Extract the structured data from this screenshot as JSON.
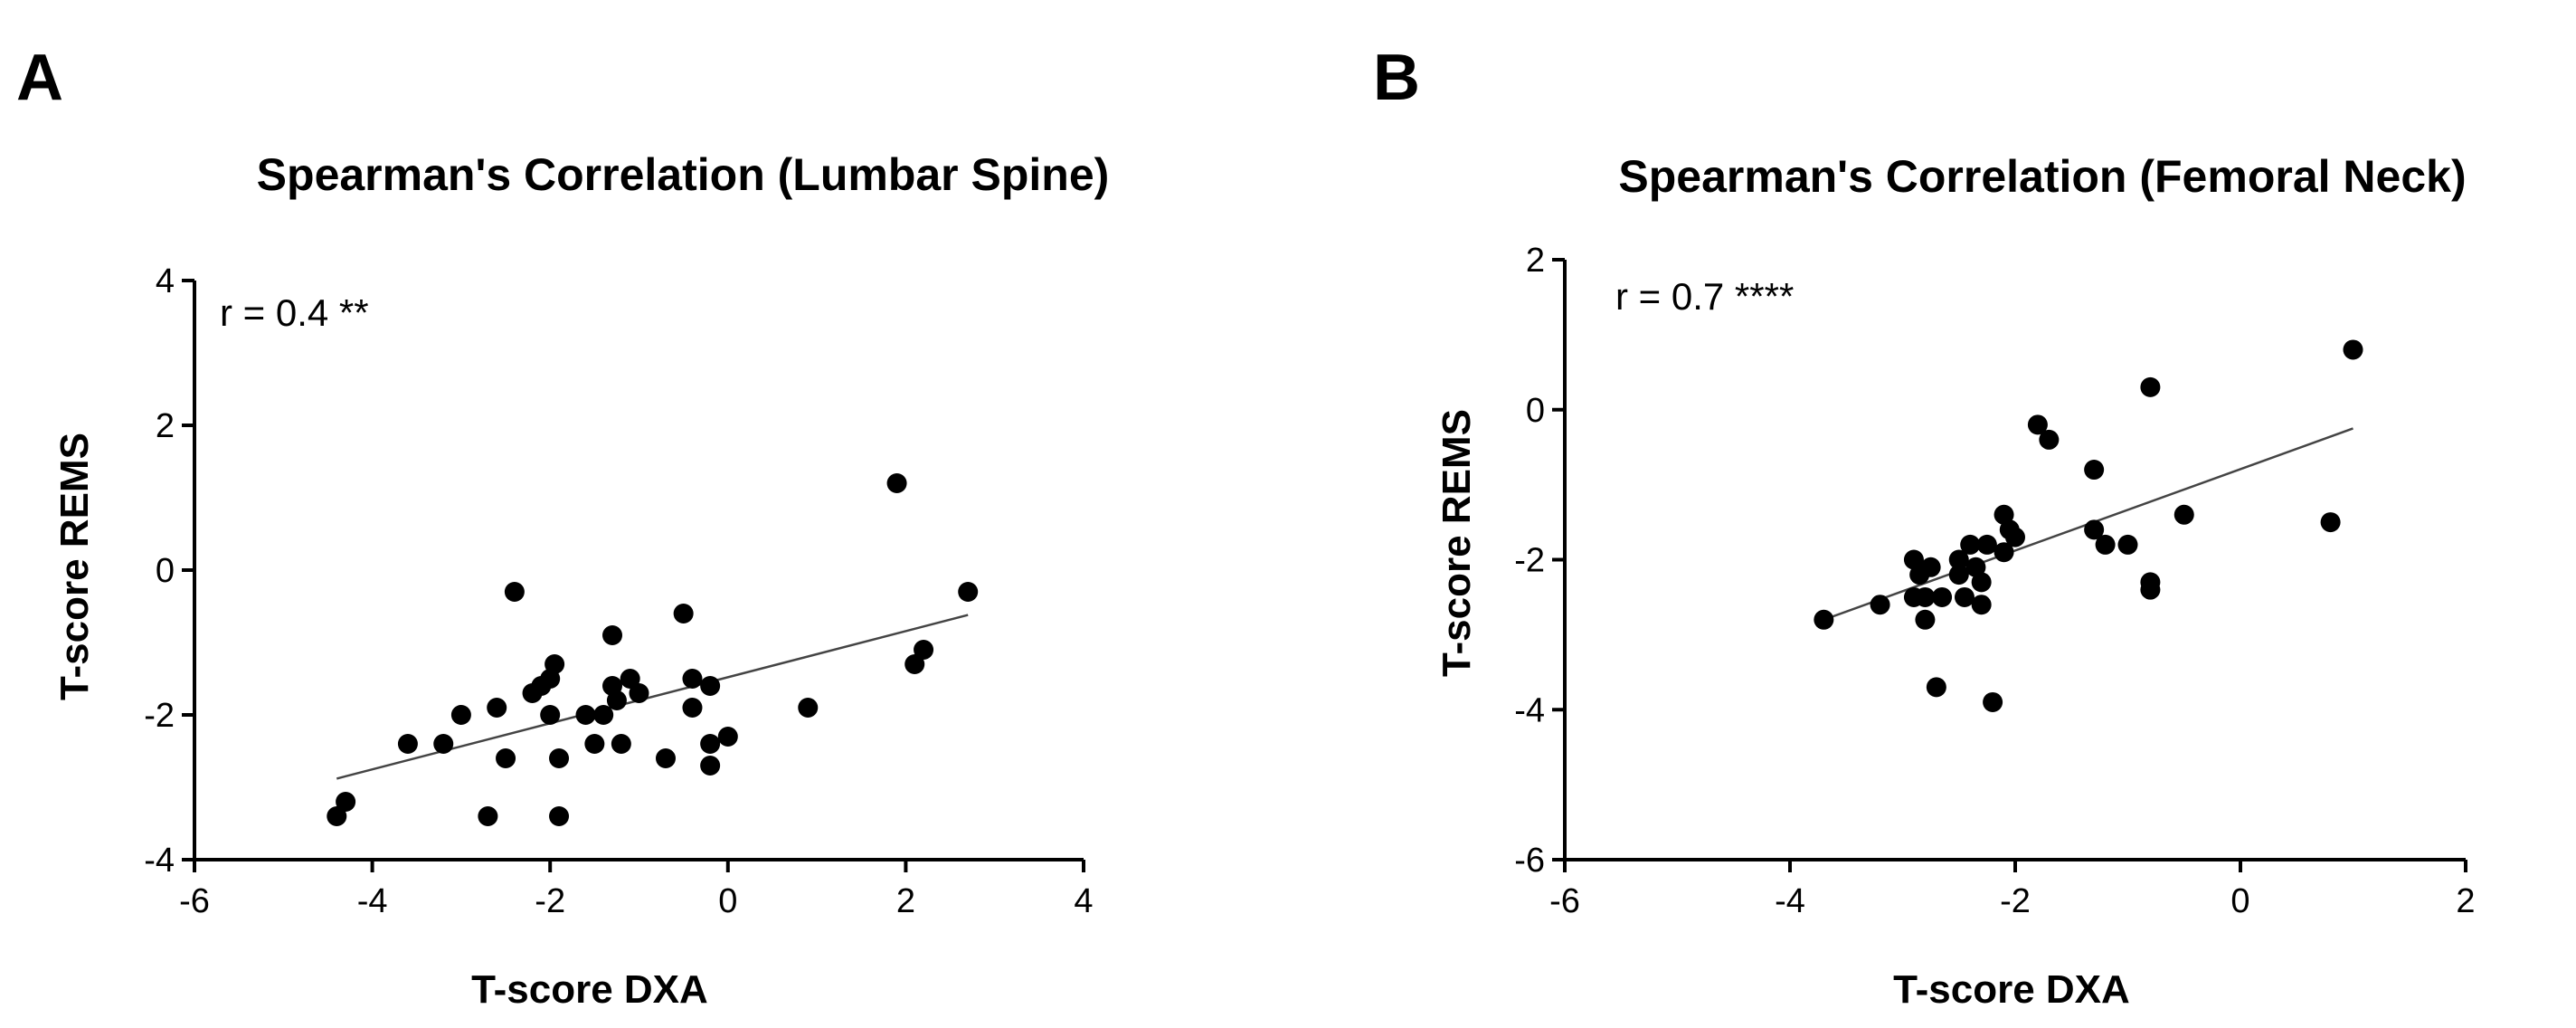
{
  "chart_data": [
    {
      "type": "scatter",
      "panel_label": "A",
      "title": "Spearman's Correlation (Lumbar Spine)",
      "xlabel": "T-score DXA",
      "ylabel": "T-score REMS",
      "xlim": [
        -6,
        4
      ],
      "ylim": [
        -4,
        4
      ],
      "xticks": [
        -6,
        -4,
        -2,
        0,
        2,
        4
      ],
      "yticks": [
        -4,
        -2,
        0,
        2,
        4
      ],
      "xtick_labels": [
        "-6",
        "-4",
        "-2",
        "0",
        "2",
        "4"
      ],
      "ytick_labels": [
        "-4",
        "-2",
        "0",
        "2",
        "4"
      ],
      "annotation": "r = 0.4 **",
      "grid": false,
      "points": [
        {
          "x": -4.4,
          "y": -3.4
        },
        {
          "x": -4.3,
          "y": -3.2
        },
        {
          "x": -3.6,
          "y": -2.4
        },
        {
          "x": -3.2,
          "y": -2.4
        },
        {
          "x": -3.0,
          "y": -2.0
        },
        {
          "x": -2.7,
          "y": -3.4
        },
        {
          "x": -2.6,
          "y": -1.9
        },
        {
          "x": -2.5,
          "y": -2.6
        },
        {
          "x": -2.4,
          "y": -0.3
        },
        {
          "x": -2.2,
          "y": -1.7
        },
        {
          "x": -2.1,
          "y": -1.6
        },
        {
          "x": -2.0,
          "y": -1.5
        },
        {
          "x": -2.0,
          "y": -2.0
        },
        {
          "x": -1.95,
          "y": -1.3
        },
        {
          "x": -1.9,
          "y": -2.6
        },
        {
          "x": -1.9,
          "y": -3.4
        },
        {
          "x": -1.6,
          "y": -2.0
        },
        {
          "x": -1.5,
          "y": -2.4
        },
        {
          "x": -1.4,
          "y": -2.0
        },
        {
          "x": -1.3,
          "y": -0.9
        },
        {
          "x": -1.3,
          "y": -1.6
        },
        {
          "x": -1.25,
          "y": -1.8
        },
        {
          "x": -1.2,
          "y": -2.4
        },
        {
          "x": -1.1,
          "y": -1.5
        },
        {
          "x": -1.0,
          "y": -1.7
        },
        {
          "x": -0.7,
          "y": -2.6
        },
        {
          "x": -0.5,
          "y": -0.6
        },
        {
          "x": -0.4,
          "y": -1.5
        },
        {
          "x": -0.4,
          "y": -1.9
        },
        {
          "x": -0.2,
          "y": -1.6
        },
        {
          "x": -0.2,
          "y": -2.4
        },
        {
          "x": -0.2,
          "y": -2.7
        },
        {
          "x": 0.0,
          "y": -2.3
        },
        {
          "x": 0.9,
          "y": -1.9
        },
        {
          "x": 1.9,
          "y": 1.2
        },
        {
          "x": 2.1,
          "y": -1.3
        },
        {
          "x": 2.2,
          "y": -1.1
        },
        {
          "x": 2.7,
          "y": -0.3
        }
      ],
      "fit_line": {
        "x": [
          -4.4,
          2.7
        ],
        "y": [
          -2.88,
          -0.62
        ]
      }
    },
    {
      "type": "scatter",
      "panel_label": "B",
      "title": "Spearman's Correlation (Femoral Neck)",
      "xlabel": "T-score DXA",
      "ylabel": "T-score REMS",
      "xlim": [
        -6,
        2
      ],
      "ylim": [
        -6,
        2
      ],
      "xticks": [
        -6,
        -4,
        -2,
        0,
        2
      ],
      "yticks": [
        -6,
        -4,
        -2,
        0,
        2
      ],
      "xtick_labels": [
        "-6",
        "-4",
        "-2",
        "0",
        "2"
      ],
      "ytick_labels": [
        "-6",
        "-4",
        "-2",
        "0",
        "2"
      ],
      "annotation": "r = 0.7 ****",
      "grid": false,
      "points": [
        {
          "x": -3.7,
          "y": -2.8
        },
        {
          "x": -3.2,
          "y": -2.6
        },
        {
          "x": -2.9,
          "y": -2.0
        },
        {
          "x": -2.9,
          "y": -2.5
        },
        {
          "x": -2.85,
          "y": -2.2
        },
        {
          "x": -2.8,
          "y": -2.8
        },
        {
          "x": -2.8,
          "y": -2.5
        },
        {
          "x": -2.75,
          "y": -2.1
        },
        {
          "x": -2.7,
          "y": -3.7
        },
        {
          "x": -2.65,
          "y": -2.5
        },
        {
          "x": -2.5,
          "y": -2.0
        },
        {
          "x": -2.5,
          "y": -2.2
        },
        {
          "x": -2.45,
          "y": -2.5
        },
        {
          "x": -2.4,
          "y": -1.8
        },
        {
          "x": -2.35,
          "y": -2.1
        },
        {
          "x": -2.3,
          "y": -2.6
        },
        {
          "x": -2.3,
          "y": -2.3
        },
        {
          "x": -2.25,
          "y": -1.8
        },
        {
          "x": -2.2,
          "y": -3.9
        },
        {
          "x": -2.1,
          "y": -1.4
        },
        {
          "x": -2.1,
          "y": -1.9
        },
        {
          "x": -2.05,
          "y": -1.6
        },
        {
          "x": -2.0,
          "y": -1.7
        },
        {
          "x": -1.8,
          "y": -0.2
        },
        {
          "x": -1.7,
          "y": -0.4
        },
        {
          "x": -1.3,
          "y": -0.8
        },
        {
          "x": -1.3,
          "y": -1.6
        },
        {
          "x": -1.2,
          "y": -1.8
        },
        {
          "x": -1.0,
          "y": -1.8
        },
        {
          "x": -0.8,
          "y": 0.3
        },
        {
          "x": -0.8,
          "y": -2.3
        },
        {
          "x": -0.8,
          "y": -2.4
        },
        {
          "x": -0.5,
          "y": -1.4
        },
        {
          "x": 0.8,
          "y": -1.5
        },
        {
          "x": 1.0,
          "y": 0.8
        }
      ],
      "fit_line": {
        "x": [
          -3.7,
          1.0
        ],
        "y": [
          -2.8,
          -0.25
        ]
      }
    }
  ]
}
